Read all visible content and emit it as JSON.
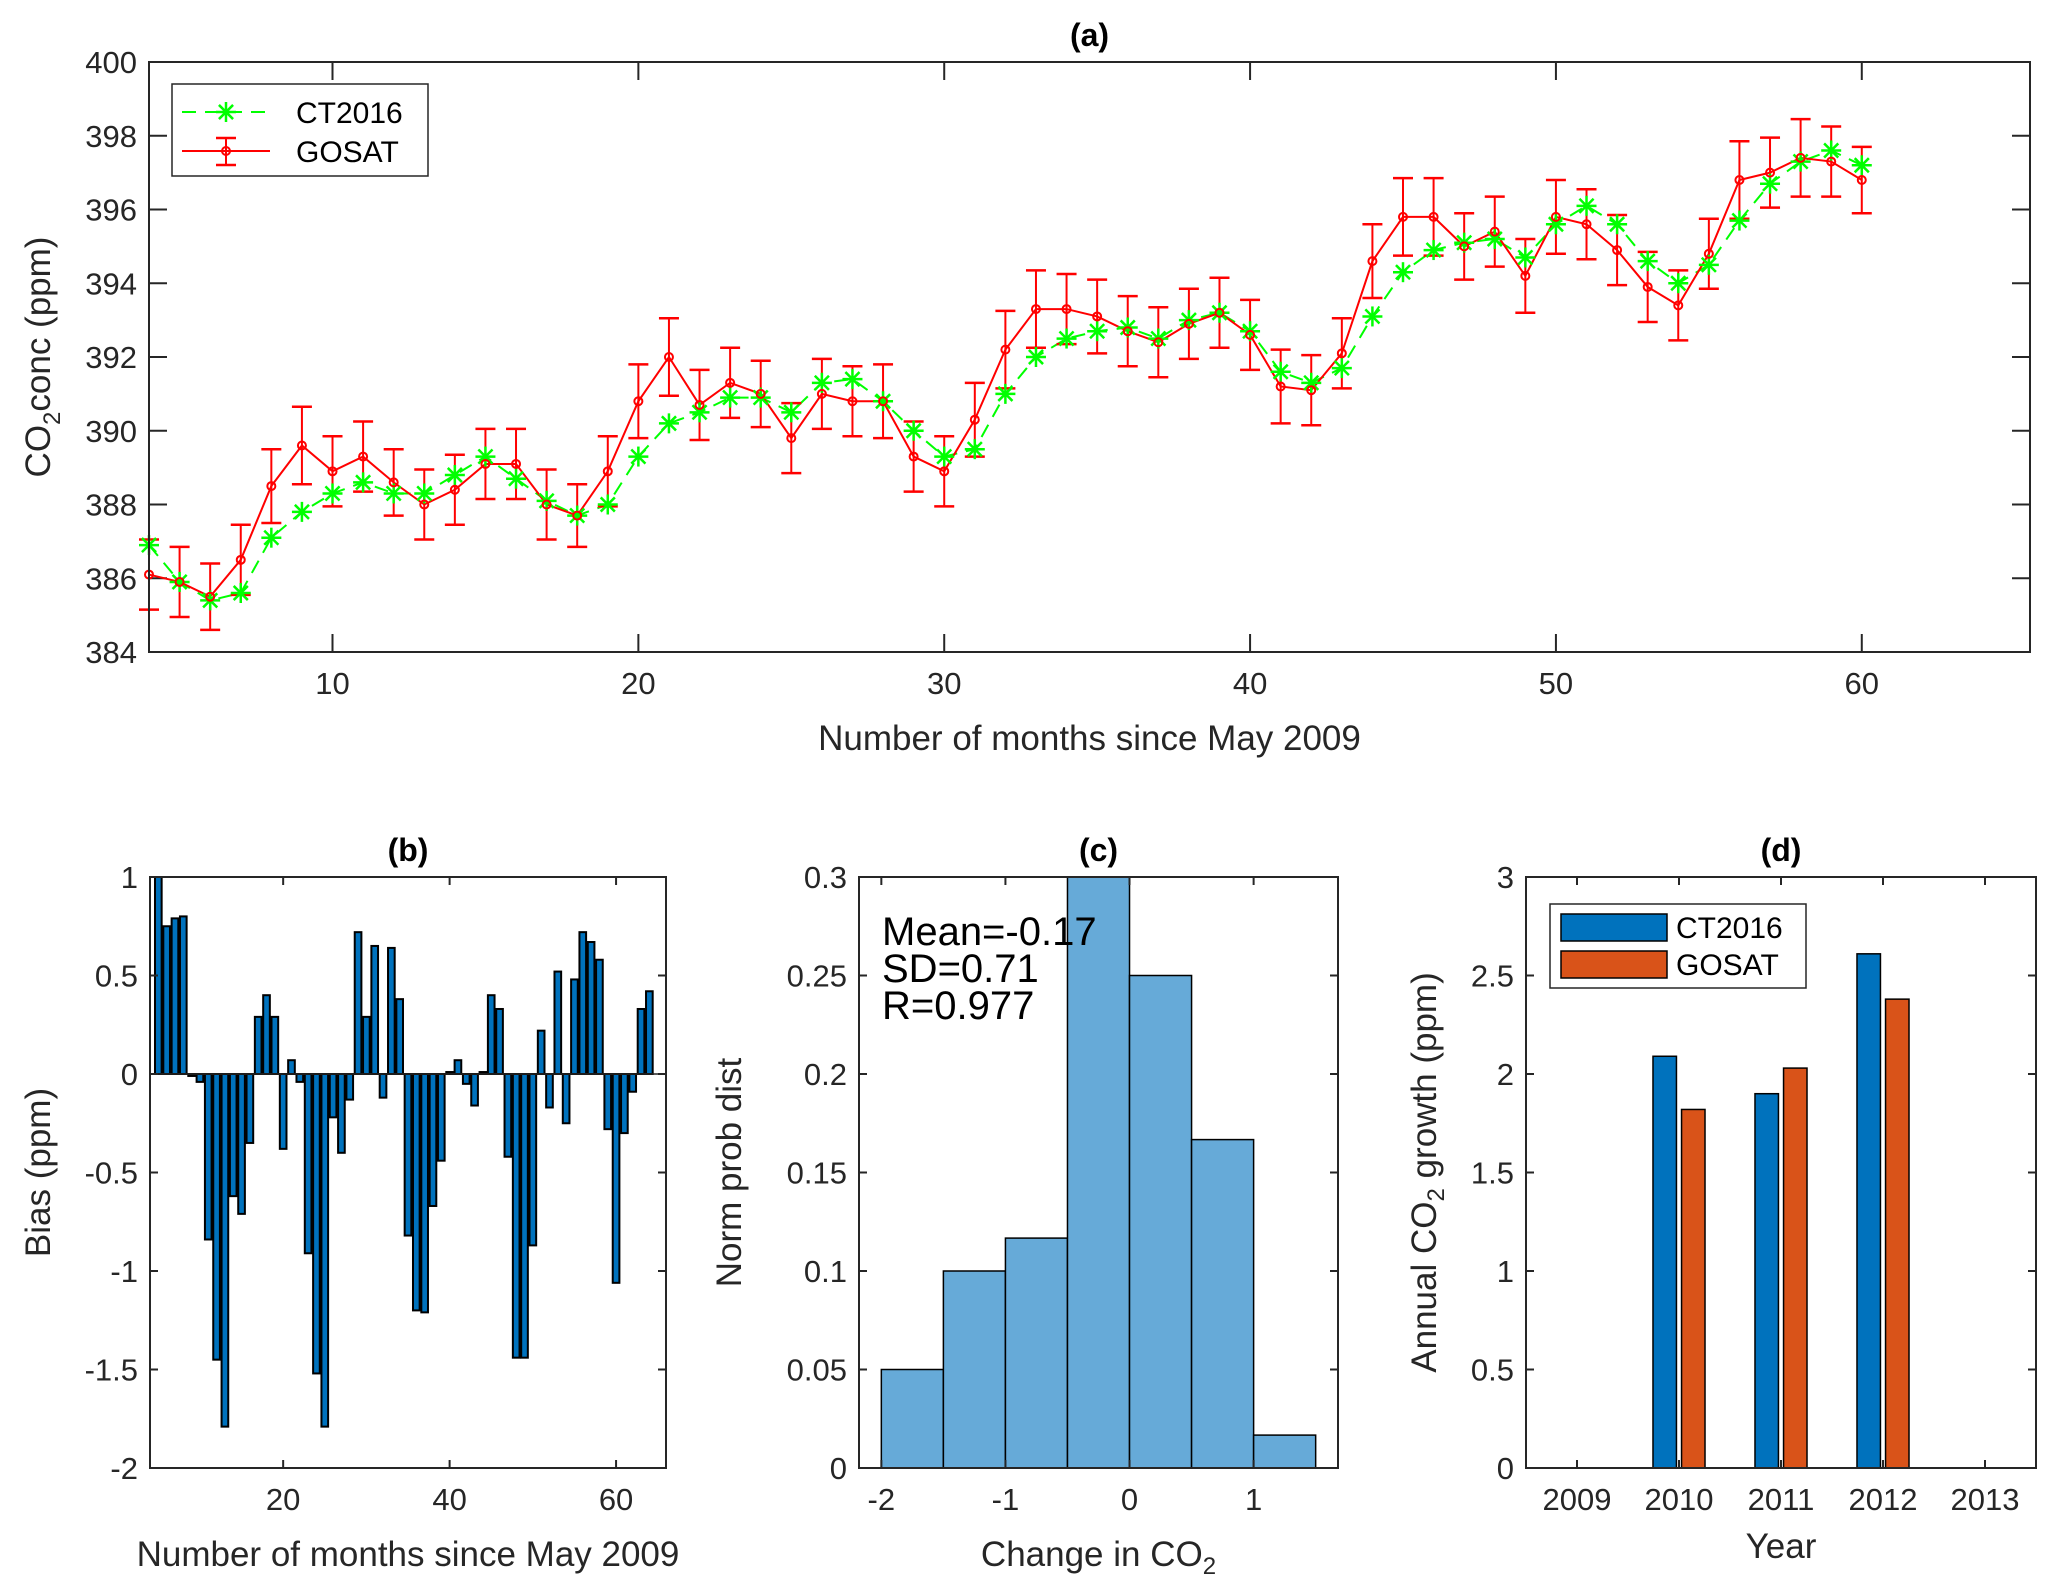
{
  "chart_data": [
    {
      "id": "a",
      "type": "line",
      "title": "(a)",
      "xlabel": "Number of months since May 2009",
      "ylabel_main": "CO",
      "ylabel_sub": "2",
      "ylabel_rest": "conc (ppm)",
      "xlim": [
        4,
        65.5
      ],
      "ylim": [
        384,
        400
      ],
      "xticks": [
        10,
        20,
        30,
        40,
        50,
        60
      ],
      "yticks": [
        384,
        386,
        388,
        390,
        392,
        394,
        396,
        398,
        400
      ],
      "grid": false,
      "legend": {
        "placement": "top-left",
        "entries": [
          "CT2016",
          "GOSAT"
        ]
      },
      "x": [
        4,
        5,
        6,
        7,
        8,
        9,
        10,
        11,
        12,
        13,
        14,
        15,
        16,
        17,
        18,
        19,
        20,
        21,
        22,
        23,
        24,
        25,
        26,
        27,
        28,
        29,
        30,
        31,
        32,
        33,
        34,
        35,
        36,
        37,
        38,
        39,
        40,
        41,
        42,
        43,
        44,
        45,
        46,
        47,
        48,
        49,
        50,
        51,
        52,
        53,
        54,
        55,
        56,
        57,
        58,
        59,
        60
      ],
      "series": [
        {
          "name": "CT2016",
          "color": "#00ff00",
          "style": "dashed",
          "marker": "asterisk",
          "values": [
            386.9,
            385.9,
            385.4,
            385.6,
            387.1,
            387.8,
            388.3,
            388.6,
            388.3,
            388.3,
            388.8,
            389.3,
            388.7,
            388.1,
            387.7,
            388.0,
            389.3,
            390.2,
            390.5,
            390.9,
            390.9,
            390.5,
            391.3,
            391.4,
            390.8,
            390.0,
            389.3,
            389.5,
            391.0,
            392.0,
            392.5,
            392.7,
            392.8,
            392.5,
            393.0,
            393.2,
            392.7,
            391.6,
            391.3,
            391.7,
            393.1,
            394.3,
            394.9,
            395.1,
            395.2,
            394.7,
            395.6,
            396.1,
            395.6,
            394.6,
            394.0,
            394.5,
            395.7,
            396.7,
            397.3,
            397.6,
            397.2
          ]
        },
        {
          "name": "GOSAT",
          "color": "#ff0000",
          "style": "solid",
          "marker": "circle",
          "values": [
            386.1,
            385.9,
            385.5,
            386.5,
            388.5,
            389.6,
            388.9,
            389.3,
            388.6,
            388.0,
            388.4,
            389.1,
            389.1,
            388.0,
            387.7,
            388.9,
            390.8,
            392.0,
            390.7,
            391.3,
            391.0,
            389.8,
            391.0,
            390.8,
            390.8,
            389.3,
            388.9,
            390.3,
            392.2,
            393.3,
            393.3,
            393.1,
            392.7,
            392.4,
            392.9,
            393.2,
            392.6,
            391.2,
            391.1,
            392.1,
            394.6,
            395.8,
            395.8,
            395.0,
            395.4,
            394.2,
            395.8,
            395.6,
            394.9,
            393.9,
            393.4,
            394.8,
            396.8,
            397.0,
            397.4,
            397.3,
            396.8
          ],
          "error": [
            0.95,
            0.95,
            0.9,
            0.95,
            1.0,
            1.05,
            0.95,
            0.95,
            0.9,
            0.95,
            0.95,
            0.95,
            0.95,
            0.95,
            0.85,
            0.95,
            1.0,
            1.05,
            0.95,
            0.95,
            0.9,
            0.95,
            0.95,
            0.95,
            1.0,
            0.95,
            0.95,
            1.0,
            1.05,
            1.05,
            0.95,
            1.0,
            0.95,
            0.95,
            0.95,
            0.95,
            0.95,
            1.0,
            0.95,
            0.95,
            1.0,
            1.05,
            1.05,
            0.9,
            0.95,
            1.0,
            1.0,
            0.95,
            0.95,
            0.95,
            0.95,
            0.95,
            1.05,
            0.95,
            1.05,
            0.95,
            0.9
          ]
        }
      ]
    },
    {
      "id": "b",
      "type": "bar",
      "title": "(b)",
      "xlabel": "Number of months since May 2009",
      "ylabel": "Bias (ppm)",
      "xlim": [
        4,
        66
      ],
      "ylim": [
        -2,
        1
      ],
      "xticks": [
        20,
        40,
        60
      ],
      "yticks": [
        -2,
        -1.5,
        -1,
        -0.5,
        0,
        0.5,
        1
      ],
      "ytick_labels": [
        "-2",
        "-1.5",
        "-1",
        "-0.5",
        "0",
        "0.5",
        "1"
      ],
      "grid": false,
      "color": "#0072bd",
      "x": [
        5,
        6,
        7,
        8,
        9,
        10,
        11,
        12,
        13,
        14,
        15,
        16,
        17,
        18,
        19,
        20,
        21,
        22,
        23,
        24,
        25,
        26,
        27,
        28,
        29,
        30,
        31,
        32,
        33,
        34,
        35,
        36,
        37,
        38,
        39,
        40,
        41,
        42,
        43,
        44,
        45,
        46,
        47,
        48,
        49,
        50,
        51,
        52,
        53,
        54,
        55,
        56,
        57,
        58,
        59,
        60,
        61,
        62,
        63,
        64
      ],
      "values": [
        1.0,
        0.75,
        0.79,
        0.8,
        -0.01,
        -0.04,
        -0.84,
        -1.45,
        -1.79,
        -0.62,
        -0.71,
        -0.35,
        0.29,
        0.4,
        0.29,
        -0.38,
        0.07,
        -0.04,
        -0.91,
        -1.52,
        -1.79,
        -0.22,
        -0.4,
        -0.13,
        0.72,
        0.29,
        0.65,
        -0.12,
        0.64,
        0.38,
        -0.82,
        -1.2,
        -1.21,
        -0.67,
        -0.44,
        0.01,
        0.07,
        -0.05,
        -0.16,
        0.01,
        0.4,
        0.33,
        -0.42,
        -1.44,
        -1.44,
        -0.87,
        0.22,
        -0.17,
        0.52,
        -0.25,
        0.48,
        0.72,
        0.67,
        0.58,
        -0.28,
        -1.06,
        -0.3,
        -0.09,
        0.33,
        0.42
      ]
    },
    {
      "id": "c",
      "type": "bar",
      "subtype": "histogram",
      "title": "(c)",
      "xlabel_main": "Change in CO",
      "xlabel_sub": "2",
      "ylabel": "Norm prob dist",
      "xlim": [
        -2.18,
        1.68
      ],
      "ylim": [
        0,
        0.3
      ],
      "xticks": [
        -2,
        -1,
        0,
        1
      ],
      "yticks": [
        0,
        0.05,
        0.1,
        0.15,
        0.2,
        0.25,
        0.3
      ],
      "ytick_labels": [
        "0",
        "0.05",
        "0.1",
        "0.15",
        "0.2",
        "0.25",
        "0.3"
      ],
      "grid": false,
      "color": "#66aad8",
      "bin_edges": [
        -2,
        -1.5,
        -1,
        -0.5,
        0,
        0.5,
        1,
        1.5
      ],
      "values": [
        0.05,
        0.1,
        0.1167,
        0.3,
        0.25,
        0.1667,
        0.0167
      ],
      "annotations": [
        "Mean=-0.17",
        "SD=0.71",
        "R=0.977"
      ]
    },
    {
      "id": "d",
      "type": "bar",
      "title": "(d)",
      "xlabel": "Year",
      "ylabel_main": "Annual CO",
      "ylabel_sub": "2",
      "ylabel_rest": " growth (ppm)",
      "xlim": [
        2008.5,
        2013.5
      ],
      "ylim": [
        0,
        3
      ],
      "categories": [
        "2009",
        "2010",
        "2011",
        "2012",
        "2013"
      ],
      "yticks": [
        0,
        0.5,
        1,
        1.5,
        2,
        2.5,
        3
      ],
      "ytick_labels": [
        "0",
        "0.5",
        "1",
        "1.5",
        "2",
        "2.5",
        "3"
      ],
      "grid": false,
      "legend": {
        "placement": "top-left",
        "entries": [
          "CT2016",
          "GOSAT"
        ]
      },
      "series": [
        {
          "name": "CT2016",
          "color": "#0072bd",
          "values": [
            0,
            2.09,
            1.9,
            2.61,
            0
          ]
        },
        {
          "name": "GOSAT",
          "color": "#d95319",
          "values": [
            0,
            1.82,
            2.03,
            2.38,
            0
          ]
        }
      ]
    }
  ]
}
